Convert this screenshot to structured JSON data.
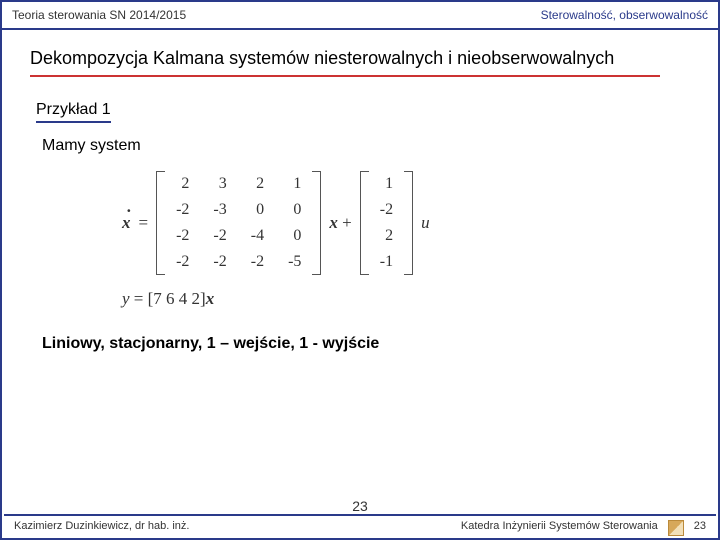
{
  "header": {
    "left": "Teoria sterowania SN 2014/2015",
    "right": "Sterowalność, obserwowalność"
  },
  "title": "Dekompozycja Kalmana systemów niesterowalnych i nieobserwowalnych",
  "example_label": "Przykład 1",
  "given_label": "Mamy system",
  "equation": {
    "lhs_symbol": "ẋ",
    "A": [
      [
        2,
        3,
        2,
        1
      ],
      [
        -2,
        -3,
        0,
        0
      ],
      [
        -2,
        -2,
        -4,
        0
      ],
      [
        -2,
        -2,
        -2,
        -5
      ]
    ],
    "state_symbol": "x",
    "B": [
      [
        1
      ],
      [
        -2
      ],
      [
        2
      ],
      [
        -1
      ]
    ],
    "input_symbol": "u",
    "output_eq": "y = [7 6 4 2]x"
  },
  "description": "Liniowy, stacjonarny, 1 – wejście, 1 - wyjście",
  "footer": {
    "left": "Kazimierz Duzinkiewicz, dr hab. inż.",
    "right": "Katedra Inżynierii Systemów Sterowania",
    "page_small": "23",
    "page_big": "23"
  },
  "colors": {
    "border": "#2a3a8a",
    "underline_red": "#cc3333",
    "text": "#000000",
    "matrix_text": "#333333"
  }
}
